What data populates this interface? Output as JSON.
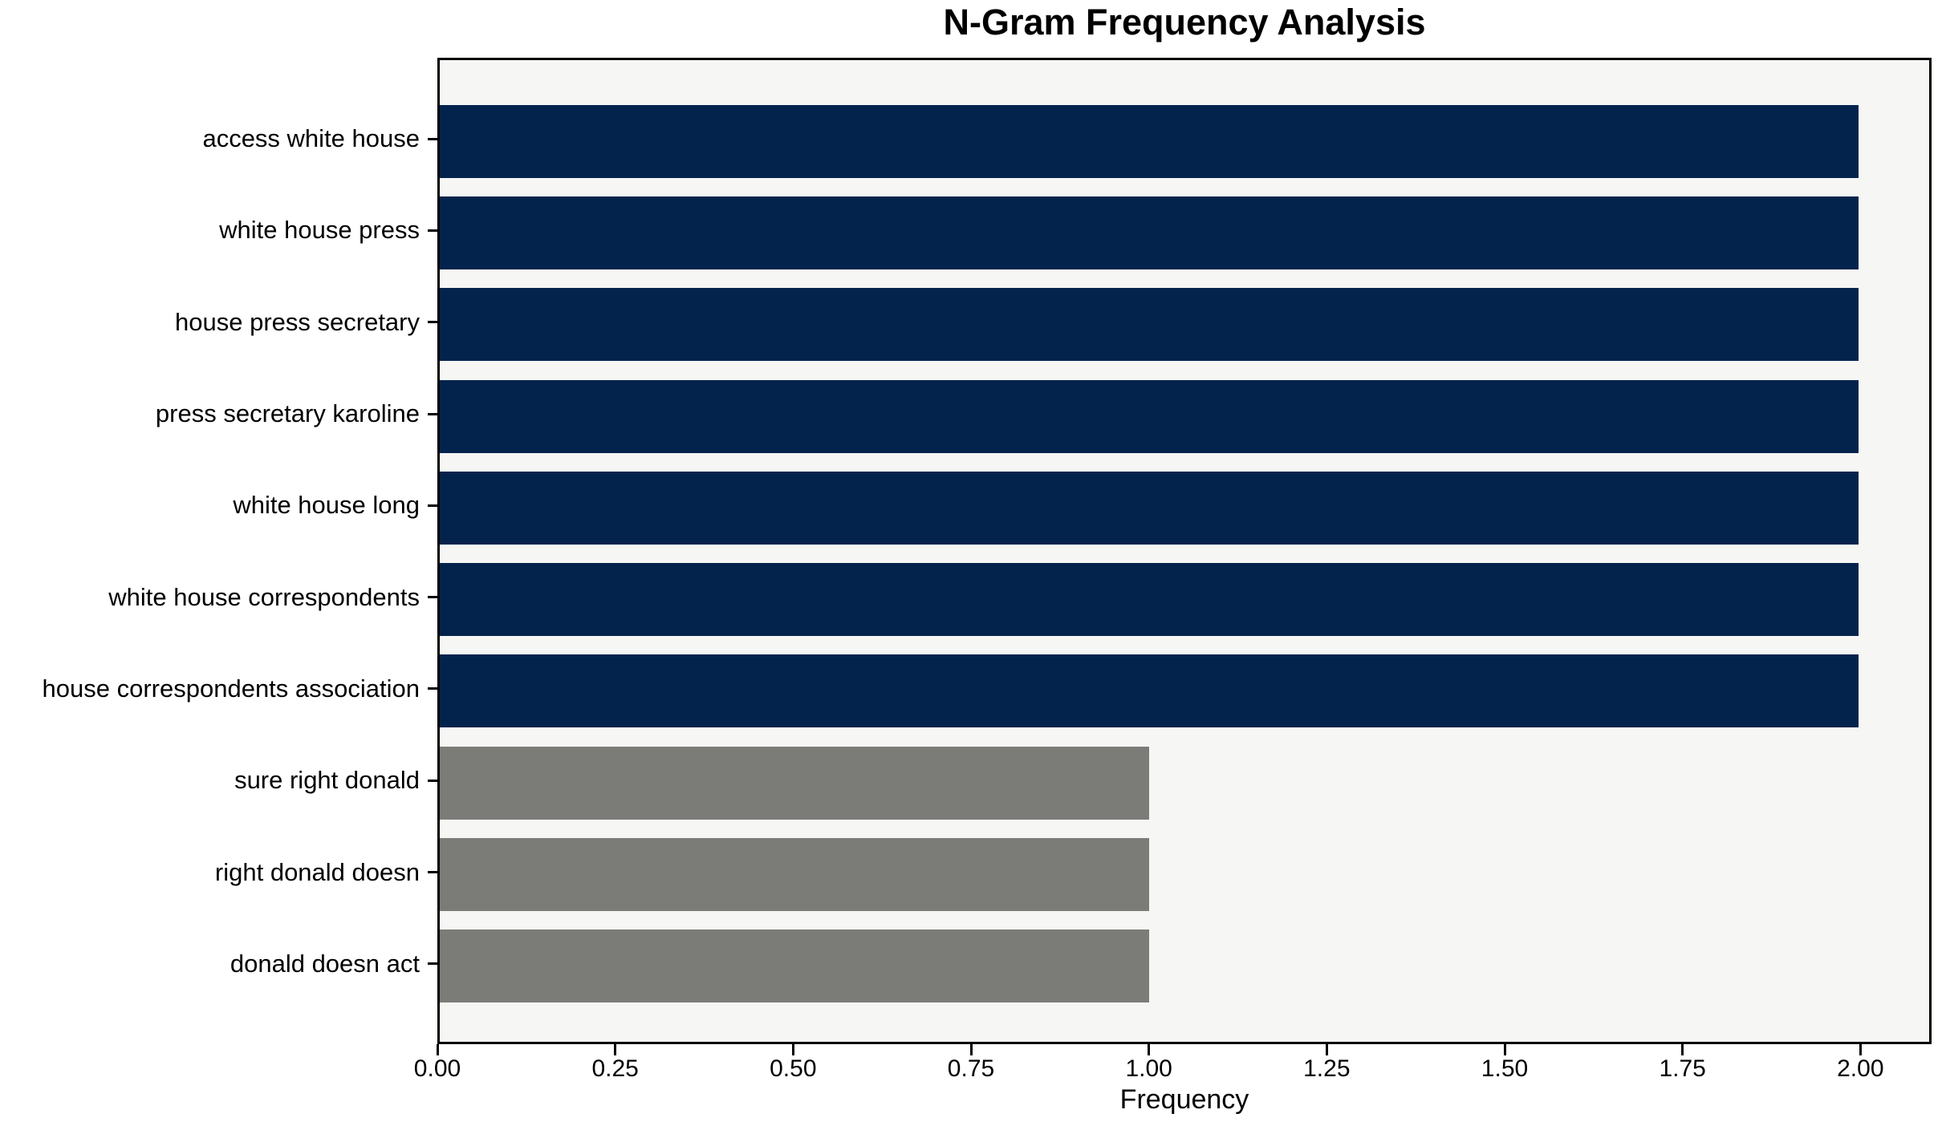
{
  "chart_data": {
    "type": "bar",
    "orientation": "horizontal",
    "title": "N-Gram Frequency Analysis",
    "xlabel": "Frequency",
    "ylabel": "",
    "categories": [
      "access white house",
      "white house press",
      "house press secretary",
      "press secretary karoline",
      "white house long",
      "white house correspondents",
      "house correspondents association",
      "sure right donald",
      "right donald doesn",
      "donald doesn act"
    ],
    "values": [
      2,
      2,
      2,
      2,
      2,
      2,
      2,
      1,
      1,
      1
    ],
    "bar_colors": [
      "#03234d",
      "#03234d",
      "#03234d",
      "#03234d",
      "#03234d",
      "#03234d",
      "#03234d",
      "#7b7b77",
      "#7b7b77",
      "#7b7b77"
    ],
    "xlim": [
      0,
      2.1
    ],
    "xticks": [
      0.0,
      0.25,
      0.5,
      0.75,
      1.0,
      1.25,
      1.5,
      1.75,
      2.0
    ],
    "xtick_labels": [
      "0.00",
      "0.25",
      "0.50",
      "0.75",
      "1.00",
      "1.25",
      "1.50",
      "1.75",
      "2.00"
    ],
    "grid": false,
    "legend": null,
    "colors": {
      "high_freq_bar": "#03234d",
      "low_freq_bar": "#7b7b77",
      "plot_background": "#f6f6f5",
      "figure_background": "#ffffff",
      "spine": "#000000",
      "text": "#000000"
    }
  }
}
